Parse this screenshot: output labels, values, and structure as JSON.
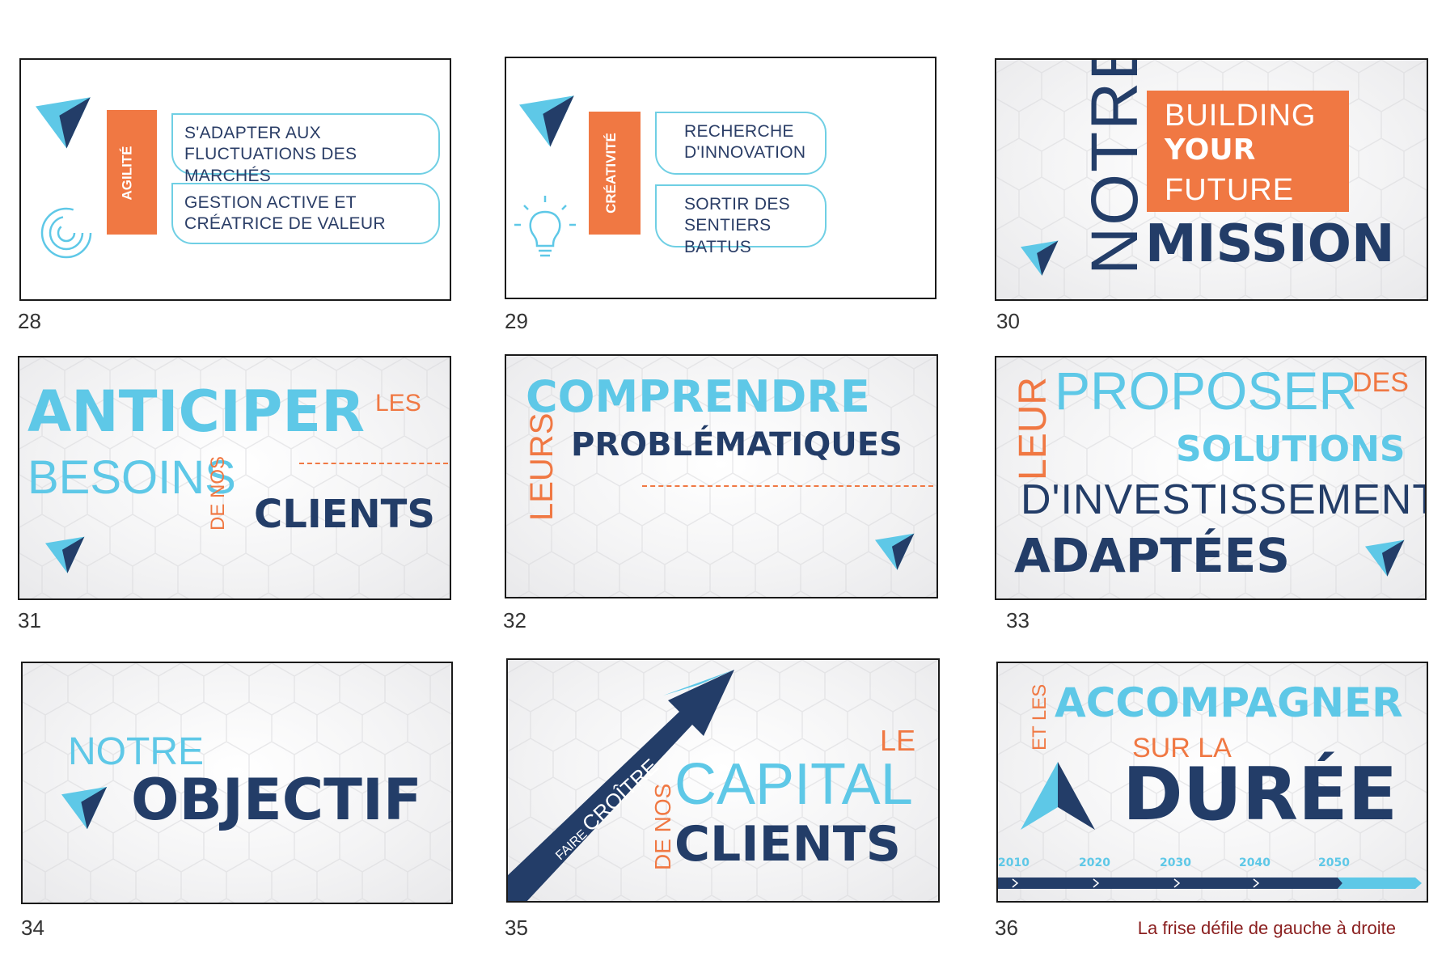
{
  "slides": {
    "s28": {
      "number": "28",
      "bar_label": "AGILITÉ",
      "pill1": "S'ADAPTER AUX FLUCTUATIONS DES MARCHÉS",
      "pill2": "GESTION ACTIVE ET CRÉATRICE DE VALEUR",
      "icons": [
        "paper-plane-icon",
        "circular-arrows-icon"
      ]
    },
    "s29": {
      "number": "29",
      "bar_label": "CRÉATIVITÉ",
      "pill1": "RECHERCHE D'INNOVATION",
      "pill2": "SORTIR DES SENTIERS BATTUS",
      "icons": [
        "paper-plane-icon",
        "light-bulb-icon"
      ]
    },
    "s30": {
      "number": "30",
      "vertical": "NOTRE",
      "box_line1": "BUILDING",
      "box_line2": "YOUR",
      "box_line3": "FUTURE",
      "big": "MISSION"
    },
    "s31": {
      "number": "31",
      "w1": "ANTICIPER",
      "w2": "LES",
      "w3": "BESOINS",
      "w4": "DE NOS",
      "w5": "CLIENTS"
    },
    "s32": {
      "number": "32",
      "w1": "COMPRENDRE",
      "w2": "LEURS",
      "w3": "PROBLÉMATIQUES"
    },
    "s33": {
      "number": "33",
      "w1": "LEUR",
      "w2": "PROPOSER",
      "w3": "DES",
      "w4": "SOLUTIONS",
      "w5": "D'INVESTISSEMENT",
      "w6": "ADAPTÉES"
    },
    "s34": {
      "number": "34",
      "w1": "NOTRE",
      "w2": "OBJECTIF"
    },
    "s35": {
      "number": "35",
      "arrow_text1": "FAIRE",
      "arrow_text2": "CROÎTRE",
      "w1": "LE",
      "w2": "DE NOS",
      "w3": "CAPITAL",
      "w4": "CLIENTS"
    },
    "s36": {
      "number": "36",
      "w1": "ET LES",
      "w2": "ACCOMPAGNER",
      "w3": "SUR LA",
      "w4": "DURÉE",
      "years": [
        "2010",
        "2020",
        "2030",
        "2040",
        "2050"
      ]
    }
  },
  "caption": "La frise défile de gauche à droite",
  "colors": {
    "navy": "#233d68",
    "cyan": "#5ec8e7",
    "orange": "#f07843",
    "caption": "#8a1f1f"
  }
}
